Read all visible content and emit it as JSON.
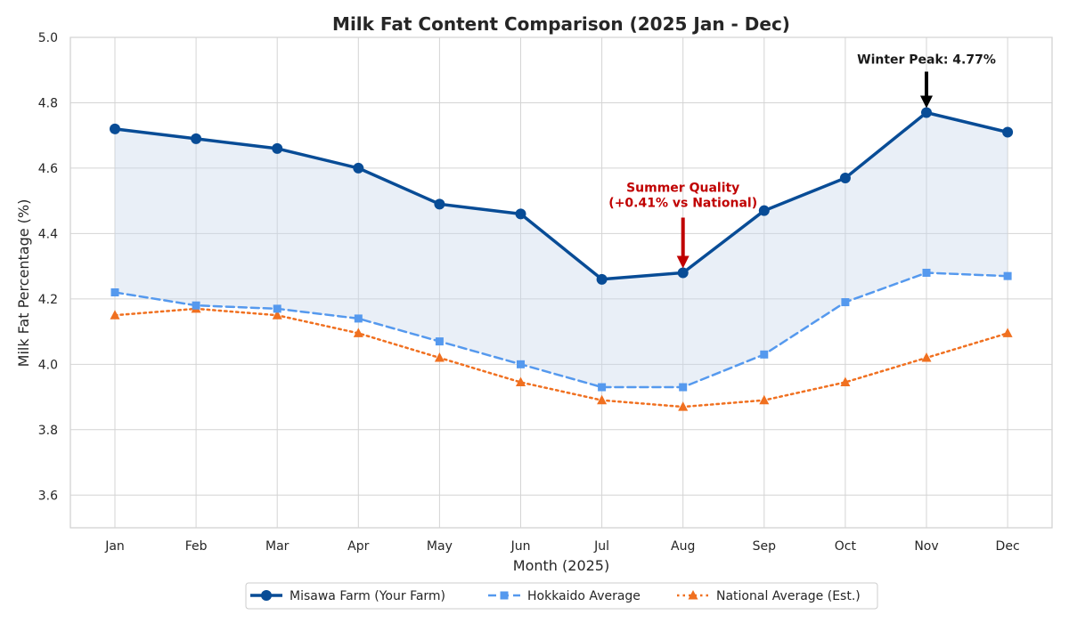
{
  "chart_data": {
    "type": "line",
    "title": "Milk Fat Content Comparison (2025 Jan - Dec)",
    "xlabel": "Month (2025)",
    "ylabel": "Milk Fat Percentage (%)",
    "ylim": [
      3.5,
      5.0
    ],
    "yticks": [
      "3.6",
      "3.8",
      "4.0",
      "4.2",
      "4.4",
      "4.6",
      "4.8",
      "5.0"
    ],
    "grid": true,
    "legend_position": "bottom-center",
    "categories": [
      "Jan",
      "Feb",
      "Mar",
      "Apr",
      "May",
      "Jun",
      "Jul",
      "Aug",
      "Sep",
      "Oct",
      "Nov",
      "Dec"
    ],
    "series": [
      {
        "name": "Misawa Farm (Your Farm)",
        "color": "#084c96",
        "style": "solid",
        "marker": "circle",
        "values": [
          4.72,
          4.69,
          4.66,
          4.6,
          4.49,
          4.46,
          4.26,
          4.28,
          4.47,
          4.57,
          4.77,
          4.71
        ]
      },
      {
        "name": "Hokkaido Average",
        "color": "#5599ee",
        "style": "dashed",
        "marker": "square",
        "values": [
          4.22,
          4.18,
          4.17,
          4.14,
          4.07,
          4.0,
          3.93,
          3.93,
          4.03,
          4.19,
          4.28,
          4.27
        ]
      },
      {
        "name": "National Average (Est.)",
        "color": "#f07020",
        "style": "dotted",
        "marker": "triangle",
        "values": [
          4.15,
          4.17,
          4.15,
          4.095,
          4.02,
          3.945,
          3.89,
          3.87,
          3.89,
          3.945,
          4.02,
          4.095
        ]
      }
    ],
    "fill_between": {
      "from_series": 0,
      "to_series": 1,
      "color": "#c8d7ec"
    },
    "annotations": [
      {
        "text": "Winter Peak: 4.77%",
        "target_category": "Nov",
        "target_value": 4.77,
        "color": "#000000"
      },
      {
        "text_line1": "Summer Quality",
        "text_line2": "(+0.41% vs National)",
        "target_category": "Aug",
        "target_value": 4.28,
        "color": "#c00000"
      }
    ]
  }
}
